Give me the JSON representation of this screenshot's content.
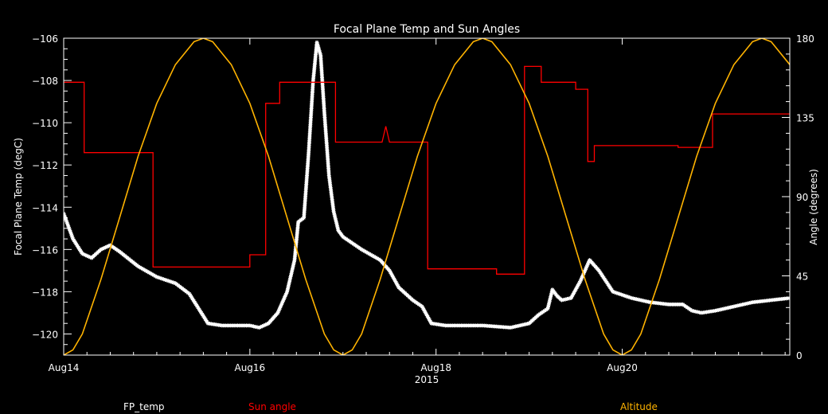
{
  "chart_data": {
    "type": "line",
    "title": "Focal Plane Temp and Sun Angles",
    "xlabel": "2015",
    "ylabel_left": "Focal Plane Temp (degC)",
    "ylabel_right": "Angle (degrees)",
    "xlim": [
      14.0,
      21.8
    ],
    "ylim_left": [
      -121,
      -106
    ],
    "ylim_right": [
      0,
      180
    ],
    "x_ticks": [
      {
        "value": 14,
        "label": "Aug14"
      },
      {
        "value": 16,
        "label": "Aug16"
      },
      {
        "value": 18,
        "label": "Aug18"
      },
      {
        "value": 20,
        "label": "Aug20"
      }
    ],
    "y_ticks_left": [
      -120,
      -118,
      -116,
      -114,
      -112,
      -110,
      -108,
      -106
    ],
    "y_ticks_right": [
      0,
      45,
      90,
      135,
      180
    ],
    "legend": [
      {
        "label": "FP_temp",
        "color": "#ffffff"
      },
      {
        "label": "Sun angle",
        "color": "#ff0000"
      },
      {
        "label": "Altitude",
        "color": "#ffb300"
      }
    ],
    "series": [
      {
        "name": "FP_temp",
        "axis": "left",
        "style": "star-markers",
        "color": "#ffffff",
        "points": [
          [
            14.0,
            -114.3
          ],
          [
            14.1,
            -115.5
          ],
          [
            14.2,
            -116.2
          ],
          [
            14.3,
            -116.4
          ],
          [
            14.4,
            -116.0
          ],
          [
            14.5,
            -115.8
          ],
          [
            14.6,
            -116.1
          ],
          [
            14.8,
            -116.8
          ],
          [
            15.0,
            -117.3
          ],
          [
            15.2,
            -117.6
          ],
          [
            15.35,
            -118.1
          ],
          [
            15.45,
            -118.8
          ],
          [
            15.55,
            -119.5
          ],
          [
            15.7,
            -119.6
          ],
          [
            16.0,
            -119.6
          ],
          [
            16.1,
            -119.7
          ],
          [
            16.2,
            -119.5
          ],
          [
            16.3,
            -119.0
          ],
          [
            16.4,
            -118.0
          ],
          [
            16.48,
            -116.5
          ],
          [
            16.52,
            -114.7
          ],
          [
            16.58,
            -114.5
          ],
          [
            16.63,
            -111.5
          ],
          [
            16.68,
            -108.0
          ],
          [
            16.72,
            -106.2
          ],
          [
            16.76,
            -106.8
          ],
          [
            16.8,
            -109.5
          ],
          [
            16.85,
            -112.5
          ],
          [
            16.9,
            -114.2
          ],
          [
            16.95,
            -115.1
          ],
          [
            17.0,
            -115.4
          ],
          [
            17.1,
            -115.7
          ],
          [
            17.2,
            -116.0
          ],
          [
            17.4,
            -116.5
          ],
          [
            17.5,
            -117.0
          ],
          [
            17.6,
            -117.8
          ],
          [
            17.75,
            -118.4
          ],
          [
            17.85,
            -118.7
          ],
          [
            17.95,
            -119.5
          ],
          [
            18.1,
            -119.6
          ],
          [
            18.5,
            -119.6
          ],
          [
            18.8,
            -119.7
          ],
          [
            19.0,
            -119.5
          ],
          [
            19.1,
            -119.1
          ],
          [
            19.2,
            -118.8
          ],
          [
            19.25,
            -117.9
          ],
          [
            19.3,
            -118.2
          ],
          [
            19.35,
            -118.4
          ],
          [
            19.45,
            -118.3
          ],
          [
            19.55,
            -117.5
          ],
          [
            19.65,
            -116.5
          ],
          [
            19.75,
            -117.0
          ],
          [
            19.9,
            -118.0
          ],
          [
            20.1,
            -118.3
          ],
          [
            20.3,
            -118.5
          ],
          [
            20.5,
            -118.6
          ],
          [
            20.65,
            -118.6
          ],
          [
            20.75,
            -118.9
          ],
          [
            20.85,
            -119.0
          ],
          [
            21.0,
            -118.9
          ],
          [
            21.2,
            -118.7
          ],
          [
            21.4,
            -118.5
          ],
          [
            21.6,
            -118.4
          ],
          [
            21.8,
            -118.3
          ]
        ]
      },
      {
        "name": "Sun angle",
        "axis": "right",
        "style": "step",
        "color": "#ff0000",
        "points": [
          [
            14.0,
            155
          ],
          [
            14.22,
            155
          ],
          [
            14.22,
            115
          ],
          [
            14.96,
            115
          ],
          [
            14.96,
            50
          ],
          [
            16.0,
            50
          ],
          [
            16.0,
            57
          ],
          [
            16.17,
            57
          ],
          [
            16.17,
            143
          ],
          [
            16.32,
            143
          ],
          [
            16.32,
            155
          ],
          [
            16.92,
            155
          ],
          [
            16.92,
            121
          ],
          [
            17.42,
            121
          ],
          [
            17.46,
            130
          ],
          [
            17.5,
            121
          ],
          [
            17.91,
            121
          ],
          [
            17.91,
            49
          ],
          [
            18.65,
            49
          ],
          [
            18.65,
            46
          ],
          [
            18.95,
            46
          ],
          [
            18.95,
            164
          ],
          [
            19.13,
            164
          ],
          [
            19.13,
            155
          ],
          [
            19.5,
            155
          ],
          [
            19.5,
            151
          ],
          [
            19.63,
            151
          ],
          [
            19.63,
            110
          ],
          [
            19.7,
            110
          ],
          [
            19.7,
            119
          ],
          [
            20.6,
            119
          ],
          [
            20.6,
            118
          ],
          [
            20.97,
            118
          ],
          [
            20.97,
            137
          ],
          [
            21.8,
            137
          ]
        ]
      },
      {
        "name": "Altitude",
        "axis": "right",
        "style": "line",
        "color": "#ffb300",
        "points": [
          [
            14.0,
            0
          ],
          [
            14.1,
            3
          ],
          [
            14.2,
            12
          ],
          [
            14.4,
            43
          ],
          [
            14.6,
            78
          ],
          [
            14.8,
            113
          ],
          [
            15.0,
            143
          ],
          [
            15.2,
            165
          ],
          [
            15.4,
            178
          ],
          [
            15.5,
            180
          ],
          [
            15.6,
            178
          ],
          [
            15.8,
            165
          ],
          [
            16.0,
            143
          ],
          [
            16.2,
            113
          ],
          [
            16.4,
            78
          ],
          [
            16.6,
            43
          ],
          [
            16.8,
            12
          ],
          [
            16.9,
            3
          ],
          [
            17.0,
            0
          ],
          [
            17.1,
            3
          ],
          [
            17.2,
            12
          ],
          [
            17.4,
            43
          ],
          [
            17.6,
            78
          ],
          [
            17.8,
            113
          ],
          [
            18.0,
            143
          ],
          [
            18.2,
            165
          ],
          [
            18.4,
            178
          ],
          [
            18.5,
            180
          ],
          [
            18.6,
            178
          ],
          [
            18.8,
            165
          ],
          [
            19.0,
            143
          ],
          [
            19.2,
            113
          ],
          [
            19.4,
            78
          ],
          [
            19.6,
            43
          ],
          [
            19.8,
            12
          ],
          [
            19.9,
            3
          ],
          [
            20.0,
            0
          ],
          [
            20.1,
            3
          ],
          [
            20.2,
            12
          ],
          [
            20.4,
            43
          ],
          [
            20.6,
            78
          ],
          [
            20.8,
            113
          ],
          [
            21.0,
            143
          ],
          [
            21.2,
            165
          ],
          [
            21.4,
            178
          ],
          [
            21.5,
            180
          ],
          [
            21.6,
            178
          ],
          [
            21.8,
            165
          ]
        ]
      }
    ]
  }
}
